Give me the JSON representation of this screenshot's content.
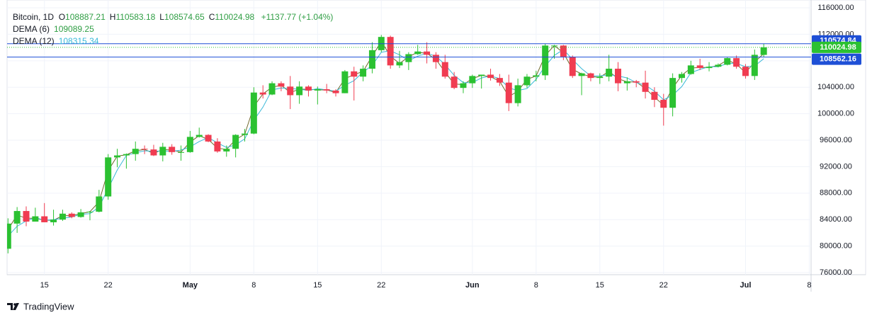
{
  "chart_data": {
    "type": "candlestick",
    "legend": {
      "symbol": "Bitcoin, 1D",
      "ohlc": [
        {
          "label": "O",
          "value": "108887.21"
        },
        {
          "label": "H",
          "value": "110583.18"
        },
        {
          "label": "L",
          "value": "108574.65"
        },
        {
          "label": "C",
          "value": "110024.98"
        }
      ],
      "change": "+1137.77 (+1.04%)"
    },
    "up_color": "#2bc131",
    "down_color": "#f03c51",
    "open": [
      79600,
      83400,
      85300,
      83700,
      84500,
      83600,
      84000,
      84900,
      84400,
      85100,
      85200,
      87500,
      93400,
      93700,
      93900,
      94700,
      94600,
      93700,
      95000,
      94200,
      94200,
      96500,
      96800,
      95800,
      94300,
      94700,
      96800,
      97000,
      103200,
      102900,
      104600,
      104100,
      102800,
      104100,
      103500,
      103700,
      103500,
      103100,
      106400,
      105600,
      106800,
      109600,
      111600,
      107300,
      107800,
      109000,
      109400,
      108900,
      107800,
      105600,
      103900,
      104600,
      105700,
      105900,
      105400,
      104700,
      101600,
      104300,
      105600,
      105800,
      110300,
      110300,
      108600,
      105700,
      106100,
      105400,
      105600,
      106800,
      104600,
      104900,
      104700,
      103300,
      102100,
      100900,
      105400,
      106000,
      107300,
      106900,
      107100,
      107400,
      108400,
      107100,
      105700,
      108887.21
    ],
    "high": [
      84200,
      85900,
      86000,
      85800,
      86500,
      85500,
      85500,
      85100,
      85600,
      85300,
      88500,
      93900,
      94700,
      94000,
      95800,
      95200,
      95300,
      95600,
      95400,
      95200,
      97400,
      97900,
      96900,
      96300,
      95200,
      96900,
      97700,
      104000,
      104300,
      104900,
      104900,
      105700,
      104900,
      104300,
      104100,
      104500,
      103700,
      106600,
      107100,
      107300,
      110800,
      111900,
      111800,
      109500,
      109300,
      110400,
      110800,
      109300,
      108900,
      106300,
      104900,
      105900,
      105900,
      106800,
      106000,
      105900,
      105300,
      106000,
      106500,
      110600,
      110400,
      110400,
      108800,
      106200,
      106200,
      106100,
      108900,
      107800,
      105500,
      105100,
      106500,
      104000,
      103000,
      106100,
      106300,
      108000,
      108300,
      107800,
      107600,
      108500,
      108800,
      107500,
      109700,
      110583.18
    ],
    "low": [
      78900,
      82000,
      83000,
      83700,
      83600,
      83100,
      83800,
      84200,
      84300,
      83900,
      85100,
      87000,
      91900,
      91700,
      92900,
      93900,
      93600,
      92800,
      93800,
      92900,
      94100,
      96400,
      95700,
      94100,
      93500,
      93400,
      95800,
      96900,
      102300,
      102800,
      103400,
      100700,
      101500,
      102600,
      101400,
      103100,
      102600,
      103100,
      102000,
      104900,
      106100,
      109300,
      106800,
      106900,
      106600,
      108900,
      107600,
      106800,
      105300,
      103700,
      103100,
      103900,
      103800,
      105000,
      104200,
      100400,
      101100,
      103900,
      104900,
      105100,
      108300,
      108100,
      105400,
      102800,
      104900,
      104500,
      104900,
      103400,
      103500,
      104000,
      102300,
      101000,
      98200,
      99600,
      104700,
      105900,
      106600,
      106400,
      107000,
      107300,
      106800,
      105300,
      105100,
      108574.65
    ],
    "close": [
      83400,
      85300,
      83700,
      84500,
      83600,
      84000,
      84900,
      84400,
      85100,
      85200,
      87500,
      93400,
      93700,
      93900,
      94700,
      94600,
      93700,
      95000,
      94200,
      94200,
      96500,
      96800,
      95800,
      94300,
      94700,
      96800,
      97000,
      103200,
      102900,
      104600,
      104100,
      102800,
      104100,
      103500,
      103700,
      103500,
      103100,
      106400,
      105600,
      106800,
      109600,
      111600,
      107300,
      107800,
      109000,
      109400,
      108900,
      107800,
      105600,
      103900,
      104600,
      105700,
      105900,
      105400,
      104700,
      101600,
      104300,
      105600,
      105800,
      110300,
      110300,
      108600,
      105700,
      106100,
      105400,
      105600,
      106800,
      104600,
      104900,
      104700,
      103300,
      102100,
      100900,
      105400,
      106000,
      107300,
      106900,
      107100,
      107400,
      108400,
      107100,
      105700,
      108900,
      110024.98
    ],
    "series": [
      {
        "name": "DEMA (6)",
        "color": "#6f6a2c",
        "value_color": "#2f9e44",
        "last": "109089.25",
        "values": [
          82500,
          84700,
          84200,
          84200,
          83900,
          83900,
          84600,
          84600,
          84900,
          85200,
          86700,
          91400,
          93600,
          93800,
          94400,
          94600,
          94000,
          94600,
          94500,
          94200,
          95700,
          96700,
          96100,
          94800,
          94600,
          96100,
          96900,
          101100,
          103000,
          104000,
          104300,
          103200,
          103700,
          103700,
          103600,
          103600,
          103200,
          105300,
          105900,
          106400,
          108700,
          110900,
          108700,
          107600,
          108600,
          109300,
          109100,
          108200,
          106300,
          104500,
          104400,
          105300,
          105800,
          105600,
          104900,
          102600,
          103400,
          105200,
          105700,
          108800,
          110300,
          109200,
          106700,
          106000,
          105600,
          105500,
          106400,
          105300,
          104800,
          104800,
          103800,
          102500,
          101300,
          103900,
          105800,
          106900,
          107000,
          107000,
          107300,
          108100,
          107500,
          106200,
          107800,
          109089.25
        ]
      },
      {
        "name": "DEMA (12)",
        "color": "#38b8d8",
        "value_color": "#38b8d8",
        "last": "108315.34",
        "values": [
          81500,
          83000,
          83800,
          84300,
          83900,
          84000,
          84200,
          84400,
          84800,
          84900,
          85900,
          88700,
          91500,
          93700,
          94100,
          94400,
          94300,
          94400,
          94300,
          94500,
          95000,
          95800,
          96400,
          95600,
          94900,
          95300,
          96200,
          99000,
          101000,
          103600,
          103900,
          103800,
          103700,
          103500,
          103800,
          103600,
          103400,
          104300,
          105000,
          106300,
          107300,
          109300,
          109500,
          108900,
          108000,
          108700,
          109100,
          108700,
          107400,
          105800,
          104700,
          104700,
          105400,
          105700,
          105300,
          103900,
          103500,
          103800,
          105200,
          107200,
          108800,
          109700,
          108200,
          106800,
          105700,
          105700,
          105900,
          105700,
          105400,
          104700,
          104300,
          103400,
          102100,
          102800,
          104100,
          106200,
          106700,
          107100,
          107100,
          107600,
          107600,
          107100,
          107200,
          108315.34
        ]
      }
    ],
    "price_lines": [
      {
        "value": 110574.84,
        "color": "#1e4fd6",
        "style": "solid"
      },
      {
        "value": 110024.98,
        "color": "#2bc131",
        "style": "dotted"
      },
      {
        "value": 108562.16,
        "color": "#1e4fd6",
        "style": "solid"
      }
    ],
    "xlim": [
      -0.1,
      88.2
    ],
    "xticks": [
      {
        "value": 4,
        "label": "15"
      },
      {
        "value": 11,
        "label": "22"
      },
      {
        "value": 20,
        "label": "May"
      },
      {
        "value": 27,
        "label": "8"
      },
      {
        "value": 34,
        "label": "15"
      },
      {
        "value": 41,
        "label": "22"
      },
      {
        "value": 51,
        "label": "Jun"
      },
      {
        "value": 58,
        "label": "8"
      },
      {
        "value": 65,
        "label": "15"
      },
      {
        "value": 72,
        "label": "22"
      },
      {
        "value": 81,
        "label": "Jul"
      },
      {
        "value": 88,
        "label": "8"
      }
    ],
    "ylim": [
      75680,
      117180
    ],
    "yticks": [
      {
        "value": 76000,
        "label": "76000.00"
      },
      {
        "value": 80000,
        "label": "80000.00"
      },
      {
        "value": 84000,
        "label": "84000.00"
      },
      {
        "value": 88000,
        "label": "88000.00"
      },
      {
        "value": 92000,
        "label": "92000.00"
      },
      {
        "value": 96000,
        "label": "96000.00"
      },
      {
        "value": 100000,
        "label": "100000.00"
      },
      {
        "value": 104000,
        "label": "104000.00"
      },
      {
        "value": 108000,
        "label": "108000.00"
      },
      {
        "value": 112000,
        "label": "112000.00"
      },
      {
        "value": 116000,
        "label": "116000.00"
      }
    ],
    "grid": true,
    "branding": "TradingView"
  }
}
